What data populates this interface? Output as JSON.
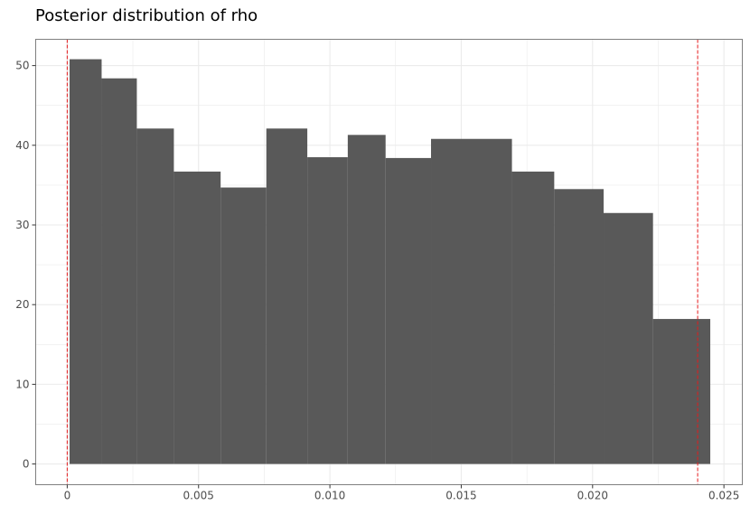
{
  "chart_data": {
    "type": "bar",
    "title": "Posterior distribution of rho",
    "xlabel": "",
    "ylabel": "",
    "xlim": [
      -0.0012,
      0.0257
    ],
    "ylim": [
      -2.6,
      53.3
    ],
    "x_ticks": [
      0,
      0.005,
      0.01,
      0.015,
      0.02,
      0.025
    ],
    "x_tick_labels": [
      "0",
      "0.005",
      "0.010",
      "0.015",
      "0.020",
      "0.025"
    ],
    "y_ticks": [
      0,
      10,
      20,
      30,
      40,
      50
    ],
    "y_tick_labels": [
      "0",
      "10",
      "20",
      "30",
      "40",
      "50"
    ],
    "bins": [
      {
        "x0": 9e-05,
        "x1": 0.00131,
        "value": 50.8
      },
      {
        "x0": 0.00131,
        "x1": 0.00265,
        "value": 48.4
      },
      {
        "x0": 0.00265,
        "x1": 0.00406,
        "value": 42.1
      },
      {
        "x0": 0.00406,
        "x1": 0.00584,
        "value": 36.7
      },
      {
        "x0": 0.00584,
        "x1": 0.00758,
        "value": 34.7
      },
      {
        "x0": 0.00758,
        "x1": 0.00914,
        "value": 42.1
      },
      {
        "x0": 0.00914,
        "x1": 0.01068,
        "value": 38.5
      },
      {
        "x0": 0.01068,
        "x1": 0.01212,
        "value": 41.3
      },
      {
        "x0": 0.01212,
        "x1": 0.01385,
        "value": 38.4
      },
      {
        "x0": 0.01385,
        "x1": 0.01693,
        "value": 40.8
      },
      {
        "x0": 0.01693,
        "x1": 0.01854,
        "value": 36.7
      },
      {
        "x0": 0.01854,
        "x1": 0.02042,
        "value": 34.5
      },
      {
        "x0": 0.02042,
        "x1": 0.0223,
        "value": 31.5
      },
      {
        "x0": 0.0223,
        "x1": 0.02448,
        "value": 18.2
      }
    ],
    "reference_lines": [
      {
        "x": 0.0,
        "style": "dashed"
      },
      {
        "x": 0.024,
        "style": "dashed"
      }
    ],
    "bar_color": "#595959",
    "reference_line_color": "#e41a1c",
    "grid_color": "#ebebeb",
    "panel_border_color": "#7f7f7f",
    "grid": true,
    "legend": "none"
  }
}
